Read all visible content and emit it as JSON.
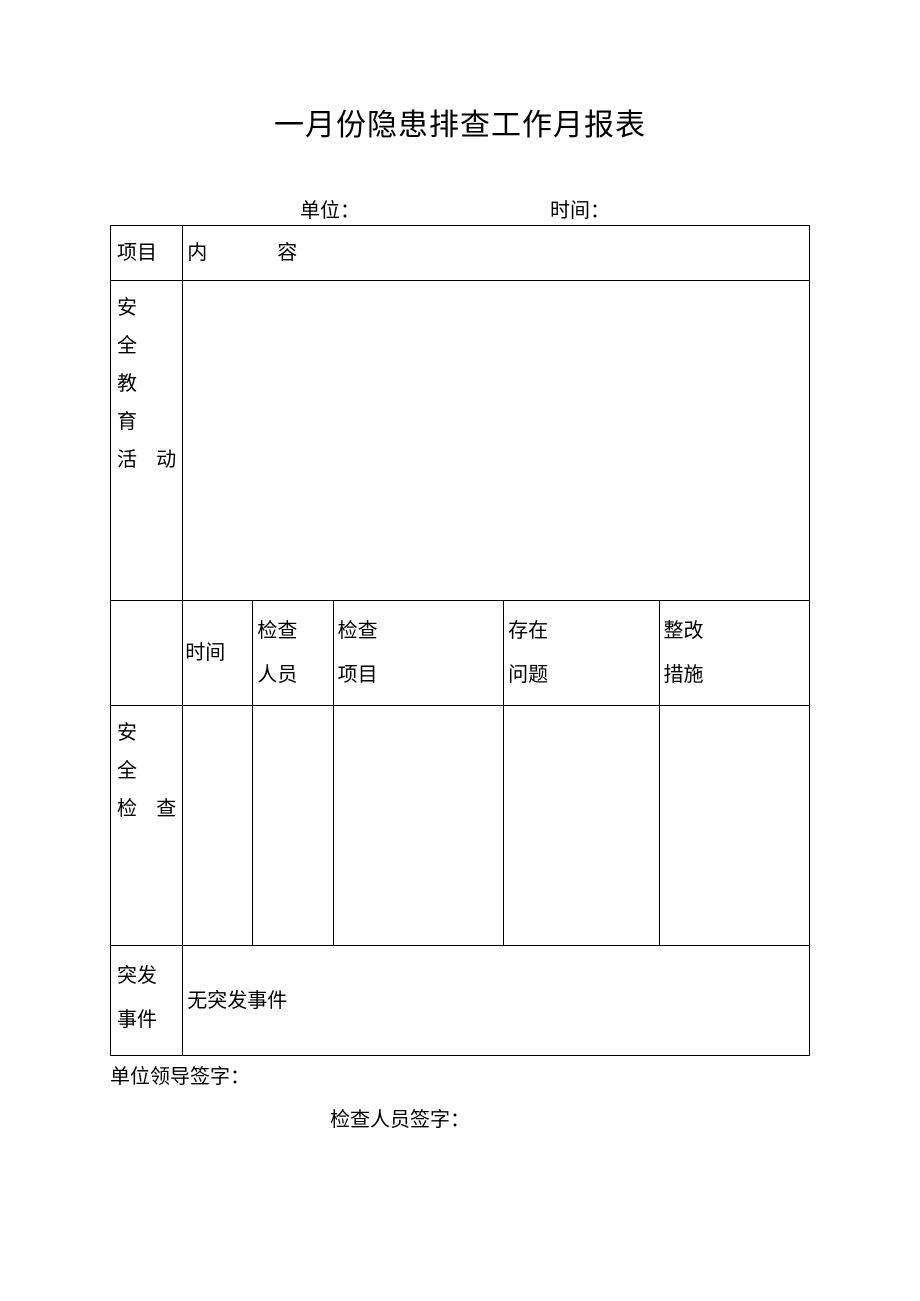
{
  "page": {
    "title": "一月份隐患排查工作月报表",
    "background_color": "#ffffff",
    "text_color": "#000000",
    "border_color": "#000000",
    "title_fontsize": 30,
    "body_fontsize": 20
  },
  "header": {
    "unit_label": "单位：",
    "time_label": "时间："
  },
  "table": {
    "row1": {
      "col1": "项目",
      "col2": "内容"
    },
    "row2": {
      "label_line1": "安全",
      "label_line2": "教育",
      "label_line3": "活动"
    },
    "subheader": {
      "time": "时间",
      "person_line1": "检查",
      "person_line2": "人员",
      "item_line1": "检查",
      "item_line2": "项目",
      "problem_line1": "存在",
      "problem_line2": "问题",
      "measure_line1": "整改",
      "measure_line2": "措施"
    },
    "safety_check": {
      "label_line1": "安全",
      "label_line2": "检查"
    },
    "emergency": {
      "label_line1": "突发",
      "label_line2": "事件",
      "content": "无突发事件"
    }
  },
  "footer": {
    "leader_sign": "单位领导签字：",
    "checker_sign": "检查人员签字："
  }
}
